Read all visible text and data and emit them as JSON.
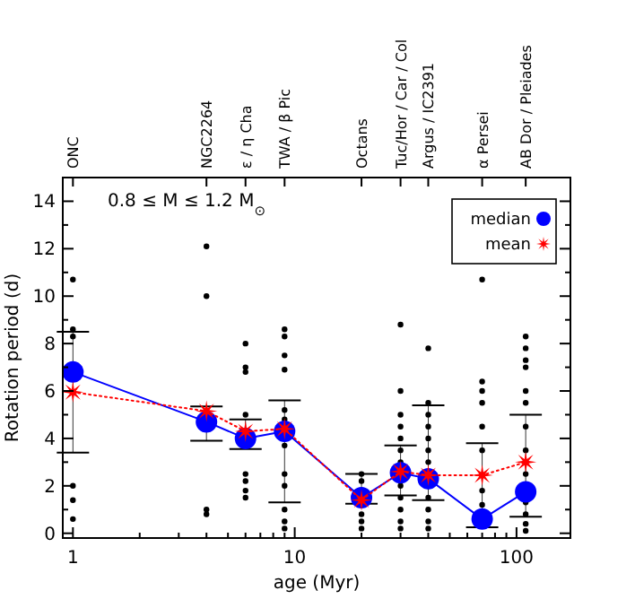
{
  "chart_data": {
    "type": "line",
    "xlabel": "age (Myr)",
    "ylabel": "Rotation period (d)",
    "annotations": [
      "0.8 ≤ M ≤ 1.2 M$_{⊙}$",
      {
        "text": "ONC",
        "x": 1
      },
      {
        "text": "NGC2264",
        "x": 4
      },
      {
        "text": "ε / η Cha",
        "x": 6
      },
      {
        "text": "TWA / β Pic",
        "x": 9
      },
      {
        "text": "Octans",
        "x": 20
      },
      {
        "text": "Tuc/Hor / Car / Col",
        "x": 30
      },
      {
        "text": "Argus / IC2391",
        "x": 40
      },
      {
        "text": "α Persei",
        "x": 70
      },
      {
        "text": "AB Dor / Pleiades",
        "x": 110
      }
    ],
    "log": "x",
    "xlim": [
      0.9,
      175
    ],
    "ylim": [
      -0.2,
      15
    ],
    "xticks": [
      1,
      {
        "value": 2,
        "label": null
      },
      {
        "value": 3,
        "label": null
      },
      {
        "value": 4,
        "label": null
      },
      {
        "value": 5,
        "label": null
      },
      {
        "value": 6,
        "label": null
      },
      {
        "value": 7,
        "label": null
      },
      {
        "value": 8,
        "label": null
      },
      {
        "value": 9,
        "label": null
      },
      10,
      {
        "value": 20,
        "label": null
      },
      {
        "value": 30,
        "label": null
      },
      {
        "value": 40,
        "label": null
      },
      {
        "value": 50,
        "label": null
      },
      {
        "value": 60,
        "label": null
      },
      {
        "value": 70,
        "label": null
      },
      {
        "value": 80,
        "label": null
      },
      {
        "value": 90,
        "label": null
      },
      100
    ],
    "yticks": [
      0,
      {
        "value": 1,
        "label": null
      },
      2,
      {
        "value": 3,
        "label": null
      },
      4,
      {
        "value": 5,
        "label": null
      },
      6,
      {
        "value": 7,
        "label": null
      },
      8,
      {
        "value": 9,
        "label": null
      },
      10,
      {
        "value": 11,
        "label": null
      },
      12,
      {
        "value": 13,
        "label": null
      },
      14
    ],
    "grid": false,
    "legend": "top right",
    "series": [
      {
        "type": "scatter",
        "color": "#000000",
        "marker": "circle",
        "x": [
          1,
          1,
          1,
          1,
          1,
          1,
          4,
          4,
          4,
          4,
          6,
          6,
          6,
          6,
          6,
          6,
          6,
          6,
          9,
          9,
          9,
          9,
          9,
          9,
          9,
          9,
          9,
          9,
          9,
          9,
          20,
          20,
          20,
          20,
          20,
          30,
          30,
          30,
          30,
          30,
          30,
          30,
          30,
          30,
          30,
          30,
          30,
          40,
          40,
          40,
          40,
          40,
          40,
          40,
          40,
          40,
          40,
          40,
          70,
          70,
          70,
          70,
          70,
          70,
          70,
          70,
          110,
          110,
          110,
          110,
          110,
          110,
          110,
          110,
          110,
          110,
          110,
          110,
          110
        ],
        "values": [
          10.7,
          8.6,
          8.3,
          2.0,
          1.4,
          0.6,
          12.1,
          10.0,
          1.0,
          0.8,
          8.0,
          7.0,
          6.8,
          5.0,
          2.5,
          2.2,
          1.8,
          1.5,
          8.6,
          8.3,
          7.5,
          6.9,
          5.2,
          4.8,
          3.7,
          2.5,
          2.0,
          1.0,
          0.5,
          0.2,
          2.5,
          2.2,
          0.8,
          0.5,
          0.2,
          8.8,
          6.0,
          5.0,
          4.5,
          4.0,
          3.5,
          3.0,
          2.0,
          1.5,
          1.0,
          0.5,
          0.2,
          7.8,
          5.5,
          5.0,
          4.5,
          4.0,
          3.5,
          3.0,
          1.5,
          1.0,
          0.5,
          0.2,
          10.7,
          6.4,
          6.0,
          5.5,
          4.5,
          3.5,
          1.8,
          1.2,
          8.3,
          7.8,
          7.3,
          7.0,
          6.0,
          5.5,
          4.5,
          3.5,
          2.5,
          1.3,
          0.8,
          0.4,
          0.1
        ]
      },
      {
        "name": "median",
        "color": "#0000ff",
        "marker": "circle",
        "line_style": "solid",
        "x": [
          1,
          4,
          6,
          9,
          20,
          30,
          40,
          70,
          110
        ],
        "values": [
          6.8,
          4.7,
          4.0,
          4.3,
          1.5,
          2.55,
          2.3,
          0.6,
          1.75
        ],
        "errors": [
          [
            3.4,
            8.5
          ],
          [
            3.9,
            5.35
          ],
          [
            3.55,
            4.8
          ],
          [
            1.3,
            5.6
          ],
          [
            1.25,
            2.5
          ],
          [
            1.6,
            3.7
          ],
          [
            1.4,
            5.4
          ],
          [
            0.25,
            3.8
          ],
          [
            0.7,
            5.0
          ]
        ]
      },
      {
        "name": "mean",
        "color": "#ff0000",
        "marker": "star",
        "line_style": "dotted",
        "x": [
          1,
          4,
          6,
          9,
          20,
          30,
          40,
          70,
          110
        ],
        "values": [
          5.95,
          5.15,
          4.3,
          4.4,
          1.4,
          2.6,
          2.45,
          2.45,
          3.0
        ]
      }
    ]
  }
}
